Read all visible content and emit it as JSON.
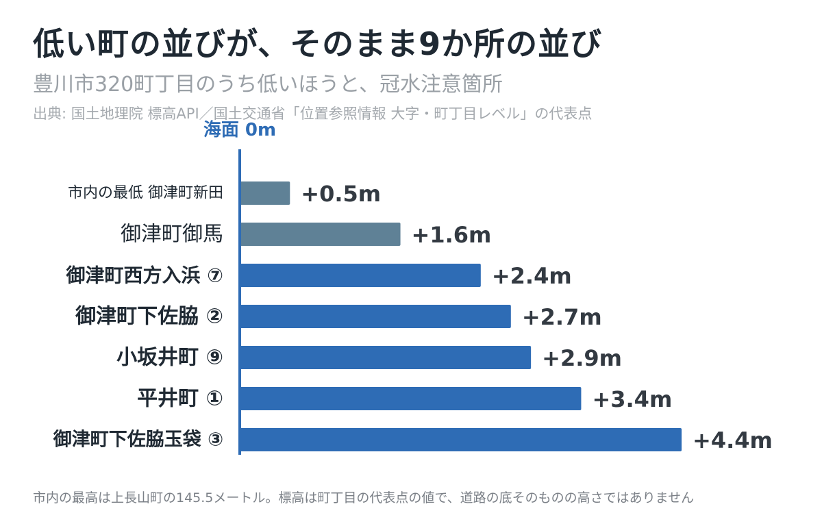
{
  "header": {
    "title": "低い町の並びが、そのまま9か所の並び",
    "subtitle": "豊川市320町丁目のうち低いほうと、冠水注意箇所",
    "source": "出典: 国土地理院 標高API／国土交通省「位置参照情報 大字・町丁目レベル」の代表点"
  },
  "footnote": "市内の最高は上長山町の145.5メートル。標高は町丁目の代表点の値で、道路の底そのものの高さではありません",
  "colors": {
    "flagged": "#2e6cb5",
    "unflagged": "#5f8196",
    "axis": "#2e6cb5",
    "label": "#1f2933",
    "value": "#333a42"
  },
  "chart_data": {
    "type": "bar",
    "orientation": "horizontal",
    "baseline_label": "海面 0m",
    "unit": "m",
    "xlim": [
      0,
      4.4
    ],
    "categories": [
      "市内の最低 御津町新田",
      "御津町御馬",
      "御津町西方入浜 ⑦",
      "御津町下佐脇 ②",
      "小坂井町 ⑨",
      "平井町 ①",
      "御津町下佐脇玉袋 ③"
    ],
    "values": [
      0.5,
      1.6,
      2.4,
      2.7,
      2.9,
      3.4,
      4.4
    ],
    "value_labels": [
      "+0.5m",
      "+1.6m",
      "+2.4m",
      "+2.7m",
      "+2.9m",
      "+3.4m",
      "+4.4m"
    ],
    "flagged": [
      false,
      false,
      true,
      true,
      true,
      true,
      true
    ]
  }
}
